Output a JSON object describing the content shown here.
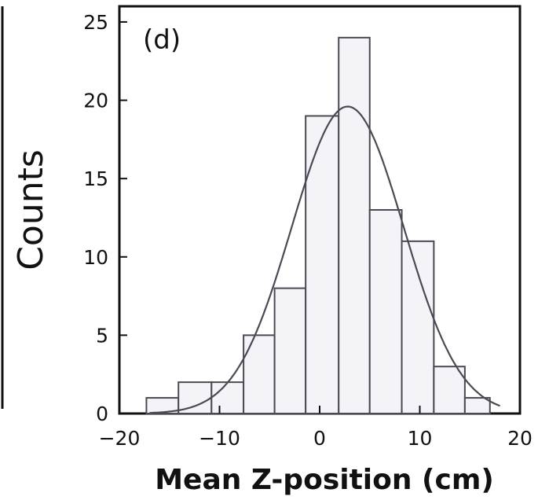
{
  "chart_data": {
    "type": "bar",
    "panel_label": "(d)",
    "xlabel": "Mean Z-position (cm)",
    "ylabel": "Counts",
    "xlim": [
      -20,
      20
    ],
    "ylim": [
      0,
      26
    ],
    "xticks": [
      -20,
      -10,
      0,
      10,
      20
    ],
    "xtick_labels": [
      "−20",
      "−10",
      "0",
      "10",
      "20"
    ],
    "yticks": [
      0,
      5,
      10,
      15,
      20,
      25
    ],
    "ytick_labels": [
      "0",
      "5",
      "10",
      "15",
      "20",
      "25"
    ],
    "bin_edges": [
      -17.3,
      -14.1,
      -10.8,
      -7.6,
      -4.5,
      -1.4,
      1.9,
      5.0,
      8.2,
      11.4,
      14.5,
      17.0
    ],
    "values": [
      1,
      2,
      2,
      5,
      8,
      19,
      24,
      13,
      11,
      3,
      1
    ],
    "fit": {
      "type": "gaussian",
      "amplitude": 19.6,
      "mean": 2.8,
      "sigma": 5.6
    },
    "grid": false,
    "colors": {
      "line": "#4a4a55",
      "axis": "#111111"
    }
  }
}
